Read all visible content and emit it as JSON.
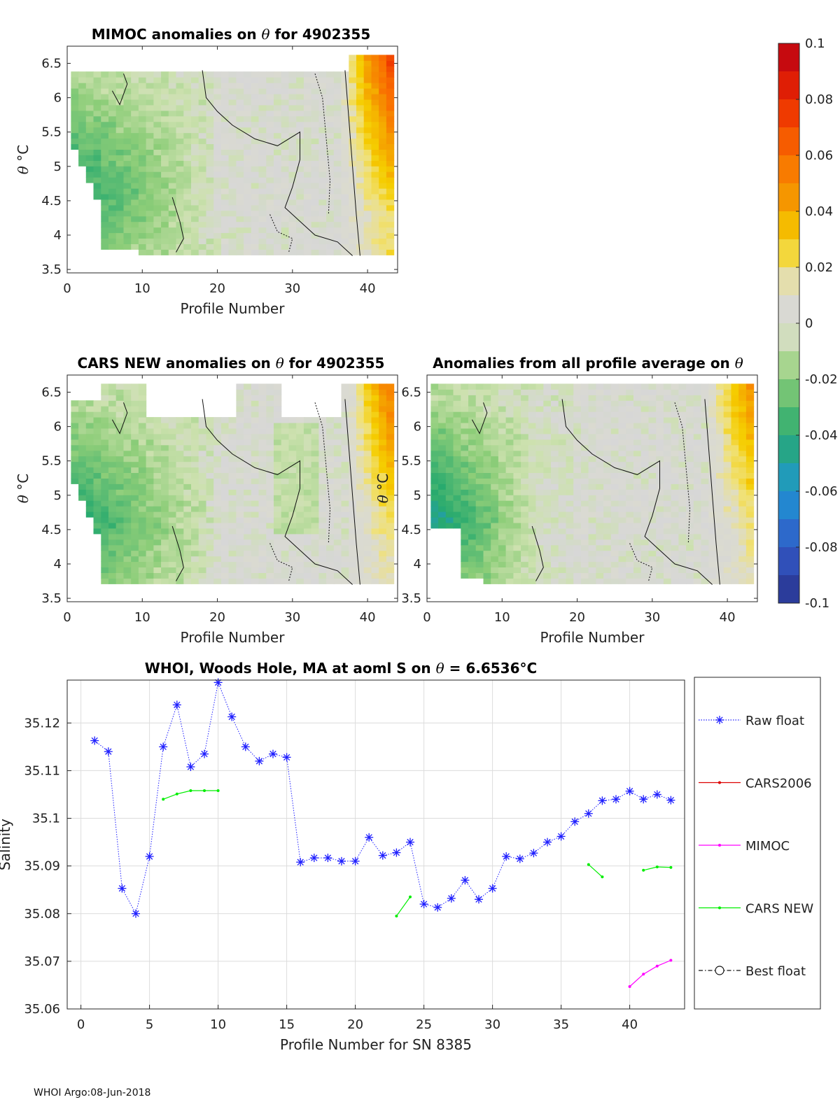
{
  "footer": "WHOI Argo:08-Jun-2018",
  "colorbar": {
    "ticks": [
      "0.1",
      "0.08",
      "0.06",
      "0.04",
      "0.02",
      "0",
      "-0.02",
      "-0.04",
      "-0.06",
      "-0.08",
      "-0.1"
    ],
    "range": [
      -0.1,
      0.1
    ]
  },
  "panels": [
    {
      "id": "mimoc",
      "title_prefix": "MIMOC anomalies on",
      "title_suffix": "for 4902355",
      "theta_symbol": "θ",
      "ylabel_prefix": "θ",
      "ylabel_unit": "°C",
      "xlabel": "Profile Number",
      "xticks": [
        "0",
        "10",
        "20",
        "30",
        "40"
      ],
      "yticks": [
        "6.5",
        "6",
        "5.5",
        "5",
        "4.5",
        "4",
        "3.5"
      ],
      "xlim": [
        0,
        44
      ],
      "ylim": [
        3.45,
        6.75
      ],
      "seed": 11,
      "warm_start": 37,
      "warm_peak": 0.048
    },
    {
      "id": "cars",
      "title_prefix": "CARS NEW anomalies on",
      "title_suffix": "for 4902355",
      "theta_symbol": "θ",
      "ylabel_prefix": "θ",
      "ylabel_unit": "°C",
      "xlabel": "Profile Number",
      "xticks": [
        "0",
        "10",
        "20",
        "30",
        "40"
      ],
      "yticks": [
        "6.5",
        "6",
        "5.5",
        "5",
        "4.5",
        "4",
        "3.5"
      ],
      "xlim": [
        0,
        44
      ],
      "ylim": [
        3.45,
        6.75
      ],
      "seed": 23,
      "warm_start": 38,
      "warm_peak": 0.035
    },
    {
      "id": "avg",
      "title_prefix": "Anomalies from all profile average on",
      "title_suffix": "",
      "theta_symbol": "θ",
      "ylabel_prefix": "θ",
      "ylabel_unit": "°C",
      "xlabel": "Profile Number",
      "xticks": [
        "0",
        "10",
        "20",
        "30",
        "40"
      ],
      "yticks": [
        "6.5",
        "6",
        "5.5",
        "5",
        "4.5",
        "4",
        "3.5"
      ],
      "xlim": [
        0,
        44
      ],
      "ylim": [
        3.45,
        6.75
      ],
      "seed": 37,
      "warm_start": 38,
      "warm_peak": 0.03
    }
  ],
  "chart_data": {
    "type": "line",
    "title_prefix": "WHOI, Woods Hole, MA at aoml S on",
    "title_theta": "θ",
    "title_value": "= 6.6536",
    "title_unit": "°C",
    "xlabel": "Profile Number for SN 8385",
    "ylabel": "Salinity",
    "xlim": [
      -1,
      44
    ],
    "ylim": [
      35.06,
      35.129
    ],
    "xticks": [
      "0",
      "5",
      "10",
      "15",
      "20",
      "25",
      "30",
      "35",
      "40"
    ],
    "yticks": [
      "35.12",
      "35.11",
      "35.1",
      "35.09",
      "35.08",
      "35.07",
      "35.06"
    ],
    "legend": [
      "Raw float",
      "CARS2006",
      "MIMOC",
      "CARS NEW",
      "Best float"
    ],
    "series": [
      {
        "name": "Raw float",
        "color": "#1f1fff",
        "x": [
          1,
          2,
          3,
          4,
          5,
          6,
          7,
          8,
          9,
          10,
          11,
          12,
          13,
          14,
          15,
          16,
          17,
          18,
          19,
          20,
          21,
          22,
          23,
          24,
          25,
          26,
          27,
          28,
          29,
          30,
          31,
          32,
          33,
          34,
          35,
          36,
          37,
          38,
          39,
          40,
          41,
          42,
          43
        ],
        "y": [
          35.1163,
          35.114,
          35.0853,
          35.08,
          35.092,
          35.115,
          35.1238,
          35.1108,
          35.1135,
          35.1285,
          35.1213,
          35.115,
          35.112,
          35.1135,
          35.1128,
          35.0908,
          35.0917,
          35.0917,
          35.091,
          35.091,
          35.096,
          35.0922,
          35.0928,
          35.095,
          35.082,
          35.0813,
          35.0832,
          35.087,
          35.083,
          35.0853,
          35.092,
          35.0915,
          35.0927,
          35.095,
          35.0962,
          35.0993,
          35.101,
          35.1037,
          35.104,
          35.1057,
          35.104,
          35.105,
          35.1038
        ]
      },
      {
        "name": "CARS NEW",
        "color": "#00ee00",
        "segments": [
          {
            "x": [
              6,
              7,
              8,
              9,
              10
            ],
            "y": [
              35.104,
              35.1051,
              35.1058,
              35.1058,
              35.1058
            ]
          },
          {
            "x": [
              23,
              24
            ],
            "y": [
              35.0795,
              35.0835
            ]
          },
          {
            "x": [
              37,
              38
            ],
            "y": [
              35.0903,
              35.0877
            ]
          },
          {
            "x": [
              41,
              42,
              43
            ],
            "y": [
              35.0891,
              35.0898,
              35.0897
            ]
          }
        ]
      },
      {
        "name": "MIMOC",
        "color": "#ff00ff",
        "segments": [
          {
            "x": [
              40,
              41,
              42,
              43
            ],
            "y": [
              35.0647,
              35.0673,
              35.069,
              35.0702
            ]
          }
        ]
      }
    ]
  }
}
